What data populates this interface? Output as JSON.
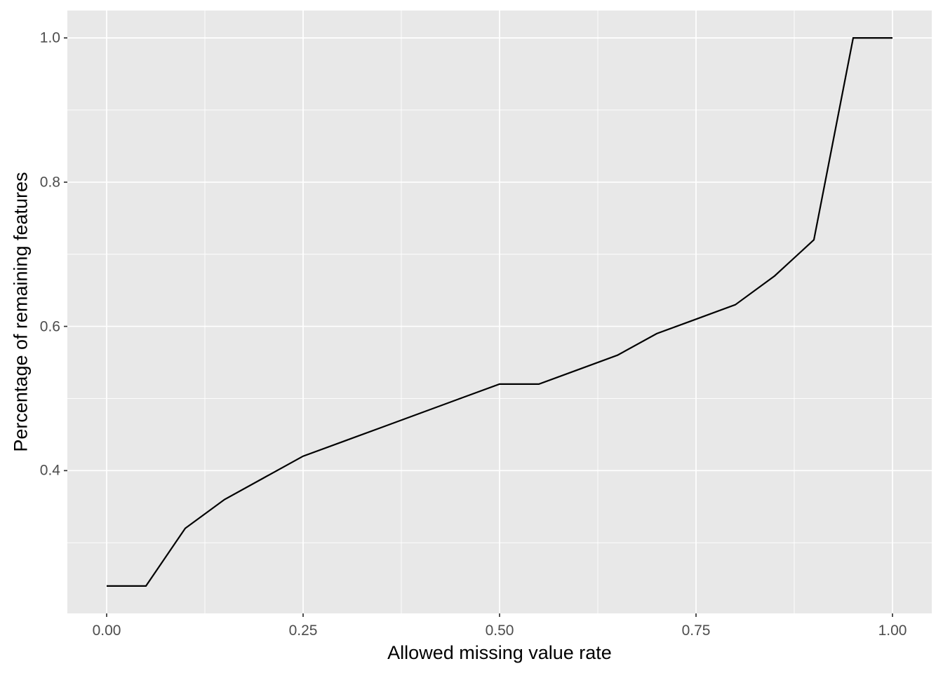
{
  "chart_data": {
    "type": "line",
    "title": "",
    "xlabel": "Allowed missing value rate",
    "ylabel": "Percentage of remaining features",
    "x": [
      0.0,
      0.05,
      0.1,
      0.15,
      0.2,
      0.25,
      0.3,
      0.35,
      0.4,
      0.45,
      0.5,
      0.55,
      0.6,
      0.65,
      0.7,
      0.75,
      0.8,
      0.85,
      0.9,
      0.95,
      1.0
    ],
    "y": [
      0.24,
      0.24,
      0.32,
      0.36,
      0.39,
      0.42,
      0.44,
      0.46,
      0.48,
      0.5,
      0.52,
      0.52,
      0.54,
      0.56,
      0.59,
      0.61,
      0.63,
      0.67,
      0.72,
      1.0,
      1.0
    ],
    "x_major_ticks": [
      0.0,
      0.25,
      0.5,
      0.75,
      1.0
    ],
    "x_tick_labels": [
      "0.00",
      "0.25",
      "0.50",
      "0.75",
      "1.00"
    ],
    "x_minor_ticks": [
      0.125,
      0.375,
      0.625,
      0.875
    ],
    "y_major_ticks": [
      0.4,
      0.6,
      0.8,
      1.0
    ],
    "y_tick_labels": [
      "0.4",
      "0.6",
      "0.8",
      "1.0"
    ],
    "y_minor_ticks": [
      0.3,
      0.5,
      0.7,
      0.9
    ],
    "xlim": [
      -0.05,
      1.05
    ],
    "ylim": [
      0.202,
      1.038
    ],
    "grid": true,
    "legend": false,
    "colors": {
      "panel_background": "#e8e8e8",
      "gridline": "#ffffff",
      "series_line": "#000000",
      "tick_mark": "#333333",
      "tick_label": "#4d4d4d",
      "axis_title": "#000000",
      "page_background": "#ffffff"
    }
  }
}
